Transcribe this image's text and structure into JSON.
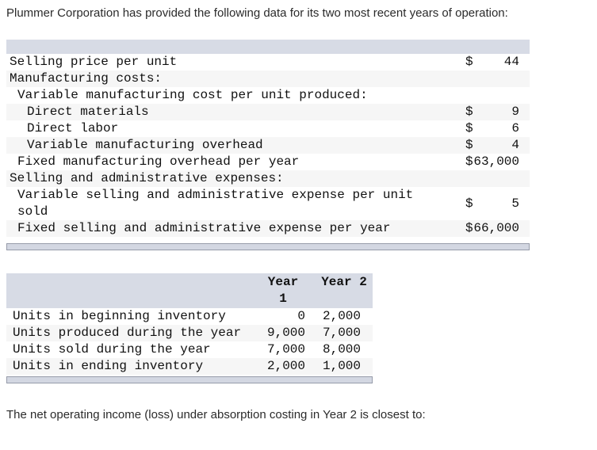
{
  "intro": "Plummer Corporation has provided the following data for its two most recent years of operation:",
  "question": "The net operating income (loss) under absorption costing in Year 2 is closest to:",
  "cost_table": {
    "rows": [
      {
        "label": "Selling price per unit",
        "dollar": "$",
        "amount": "44"
      },
      {
        "label": "Manufacturing costs:",
        "dollar": "",
        "amount": ""
      },
      {
        "label": "Variable manufacturing cost per unit produced:",
        "dollar": "",
        "amount": ""
      },
      {
        "label": "Direct materials",
        "dollar": "$",
        "amount": "9"
      },
      {
        "label": "Direct labor",
        "dollar": "$",
        "amount": "6"
      },
      {
        "label": "Variable manufacturing overhead",
        "dollar": "$",
        "amount": "4"
      },
      {
        "label": "Fixed manufacturing overhead per year",
        "dollar": "$",
        "amount": "63,000"
      },
      {
        "label": "Selling and administrative expenses:",
        "dollar": "",
        "amount": ""
      },
      {
        "label": "Variable selling and administrative expense per unit sold",
        "dollar": "$",
        "amount": "5"
      },
      {
        "label": "Fixed selling and administrative expense per year",
        "dollar": "$",
        "amount": "66,000"
      }
    ]
  },
  "units_table": {
    "col_headers": {
      "year1": "Year 1",
      "year2": "Year 2"
    },
    "rows": [
      {
        "label": "Units in beginning inventory",
        "year1": "0",
        "year2": "2,000"
      },
      {
        "label": "Units produced during the year",
        "year1": "9,000",
        "year2": "7,000"
      },
      {
        "label": "Units sold during the year",
        "year1": "7,000",
        "year2": "8,000"
      },
      {
        "label": "Units in ending inventory",
        "year1": "2,000",
        "year2": "1,000"
      }
    ]
  }
}
